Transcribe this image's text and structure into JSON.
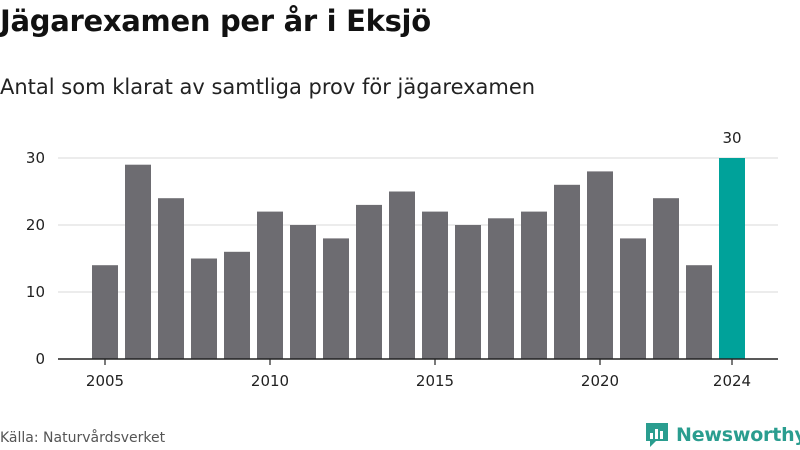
{
  "title": "Jägarexamen per år i Eksjö",
  "subtitle": "Antal som klarat av samtliga prov för jägarexamen",
  "source": "Källa: Naturvårdsverket",
  "brand": {
    "name": "Newsworthy",
    "icon": "bar-chart-logo-icon"
  },
  "colors": {
    "bar": "#6d6c71",
    "highlight": "#00a29a",
    "grid": "#d9d9d9",
    "axis": "#222222",
    "brand": "#2a9d8f"
  },
  "chart_data": {
    "type": "bar",
    "categories": [
      "2005",
      "2006",
      "2007",
      "2008",
      "2009",
      "2010",
      "2011",
      "2012",
      "2013",
      "2014",
      "2015",
      "2016",
      "2017",
      "2018",
      "2019",
      "2020",
      "2021",
      "2022",
      "2023",
      "2024"
    ],
    "values": [
      14,
      29,
      24,
      15,
      16,
      22,
      20,
      18,
      23,
      25,
      22,
      20,
      21,
      22,
      26,
      28,
      18,
      24,
      14,
      30
    ],
    "highlight_index": 19,
    "highlight_label": "30",
    "x_tick_labels": [
      "2005",
      "2010",
      "2015",
      "2020",
      "2024"
    ],
    "y_ticks": [
      0,
      10,
      20,
      30
    ],
    "ylim": [
      0,
      30
    ],
    "xlabel": "",
    "ylabel": "",
    "grid": true,
    "legend": "none"
  }
}
